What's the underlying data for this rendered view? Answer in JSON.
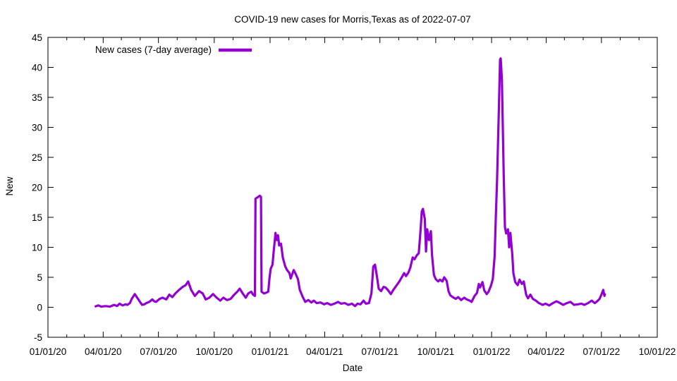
{
  "chart_data": {
    "type": "line",
    "title": "COVID-19 new cases for Morris,Texas as of 2022-07-07",
    "xlabel": "Date",
    "ylabel": "New",
    "grid": false,
    "background_color": "#ffffff",
    "axis_color": "#000000",
    "legend": {
      "position": "top-left-inside",
      "sample": "line-right-of-label"
    },
    "x_axis": {
      "start_date": "2020-01-01",
      "end_date": "2022-10-01",
      "tick_labels": [
        "01/01/20",
        "04/01/20",
        "07/01/20",
        "10/01/20",
        "01/01/21",
        "04/01/21",
        "07/01/21",
        "10/01/21",
        "01/01/22",
        "04/01/22",
        "07/01/22",
        "10/01/22"
      ],
      "major_tick_every_months": 3,
      "minor_tick_every_months": 1
    },
    "y_axis": {
      "min": -5,
      "max": 45,
      "tick_step": 5,
      "tick_labels": [
        "-5",
        "0",
        "5",
        "10",
        "15",
        "20",
        "25",
        "30",
        "35",
        "40",
        "45"
      ]
    },
    "series": [
      {
        "name": "New cases (7-day average)",
        "color": "#9400d3",
        "points": [
          [
            "2020-03-18",
            0.1
          ],
          [
            "2020-03-24",
            0.3
          ],
          [
            "2020-03-29",
            0.1
          ],
          [
            "2020-04-05",
            0.2
          ],
          [
            "2020-04-12",
            0.1
          ],
          [
            "2020-04-19",
            0.4
          ],
          [
            "2020-04-24",
            0.2
          ],
          [
            "2020-04-28",
            0.6
          ],
          [
            "2020-05-03",
            0.3
          ],
          [
            "2020-05-08",
            0.5
          ],
          [
            "2020-05-11",
            0.4
          ],
          [
            "2020-05-15",
            0.7
          ],
          [
            "2020-05-18",
            1.4
          ],
          [
            "2020-05-23",
            2.2
          ],
          [
            "2020-05-29",
            1.3
          ],
          [
            "2020-06-04",
            0.4
          ],
          [
            "2020-06-08",
            0.5
          ],
          [
            "2020-06-11",
            0.7
          ],
          [
            "2020-06-16",
            0.9
          ],
          [
            "2020-06-21",
            1.3
          ],
          [
            "2020-06-24",
            1.0
          ],
          [
            "2020-06-27",
            0.9
          ],
          [
            "2020-07-03",
            1.4
          ],
          [
            "2020-07-08",
            1.6
          ],
          [
            "2020-07-14",
            1.3
          ],
          [
            "2020-07-19",
            2.1
          ],
          [
            "2020-07-24",
            1.7
          ],
          [
            "2020-07-29",
            2.3
          ],
          [
            "2020-08-04",
            2.9
          ],
          [
            "2020-08-10",
            3.4
          ],
          [
            "2020-08-15",
            3.7
          ],
          [
            "2020-08-19",
            4.3
          ],
          [
            "2020-08-24",
            2.9
          ],
          [
            "2020-08-30",
            1.9
          ],
          [
            "2020-09-06",
            2.7
          ],
          [
            "2020-09-12",
            2.3
          ],
          [
            "2020-09-17",
            1.3
          ],
          [
            "2020-09-23",
            1.6
          ],
          [
            "2020-09-29",
            2.2
          ],
          [
            "2020-10-05",
            1.6
          ],
          [
            "2020-10-11",
            1.1
          ],
          [
            "2020-10-16",
            1.6
          ],
          [
            "2020-10-22",
            1.2
          ],
          [
            "2020-10-28",
            1.4
          ],
          [
            "2020-11-03",
            2.1
          ],
          [
            "2020-11-08",
            2.6
          ],
          [
            "2020-11-12",
            3.1
          ],
          [
            "2020-11-17",
            2.3
          ],
          [
            "2020-11-22",
            1.6
          ],
          [
            "2020-11-26",
            2.3
          ],
          [
            "2020-12-01",
            2.6
          ],
          [
            "2020-12-04",
            2.1
          ],
          [
            "2020-12-07",
            1.9
          ],
          [
            "2020-12-08",
            18.1
          ],
          [
            "2020-12-11",
            18.3
          ],
          [
            "2020-12-15",
            18.6
          ],
          [
            "2020-12-17",
            18.4
          ],
          [
            "2020-12-18",
            2.6
          ],
          [
            "2020-12-22",
            2.3
          ],
          [
            "2020-12-25",
            2.4
          ],
          [
            "2020-12-29",
            2.6
          ],
          [
            "2020-12-31",
            4.8
          ],
          [
            "2021-01-02",
            6.4
          ],
          [
            "2021-01-05",
            7.1
          ],
          [
            "2021-01-07",
            9.3
          ],
          [
            "2021-01-10",
            12.4
          ],
          [
            "2021-01-12",
            11.2
          ],
          [
            "2021-01-14",
            12.0
          ],
          [
            "2021-01-16",
            10.3
          ],
          [
            "2021-01-19",
            10.6
          ],
          [
            "2021-01-22",
            8.3
          ],
          [
            "2021-01-26",
            6.8
          ],
          [
            "2021-01-29",
            6.2
          ],
          [
            "2021-02-02",
            5.7
          ],
          [
            "2021-02-04",
            4.8
          ],
          [
            "2021-02-09",
            6.2
          ],
          [
            "2021-02-12",
            5.6
          ],
          [
            "2021-02-16",
            4.7
          ],
          [
            "2021-02-19",
            2.9
          ],
          [
            "2021-02-24",
            1.7
          ],
          [
            "2021-02-28",
            0.9
          ],
          [
            "2021-03-05",
            1.2
          ],
          [
            "2021-03-10",
            0.8
          ],
          [
            "2021-03-14",
            1.1
          ],
          [
            "2021-03-19",
            0.7
          ],
          [
            "2021-03-25",
            0.8
          ],
          [
            "2021-03-31",
            0.5
          ],
          [
            "2021-04-05",
            0.7
          ],
          [
            "2021-04-11",
            0.4
          ],
          [
            "2021-04-17",
            0.6
          ],
          [
            "2021-04-23",
            0.9
          ],
          [
            "2021-04-28",
            0.6
          ],
          [
            "2021-05-04",
            0.7
          ],
          [
            "2021-05-10",
            0.4
          ],
          [
            "2021-05-16",
            0.6
          ],
          [
            "2021-05-21",
            0.2
          ],
          [
            "2021-05-25",
            0.6
          ],
          [
            "2021-05-30",
            0.5
          ],
          [
            "2021-06-04",
            1.1
          ],
          [
            "2021-06-08",
            0.6
          ],
          [
            "2021-06-13",
            0.7
          ],
          [
            "2021-06-17",
            2.3
          ],
          [
            "2021-06-20",
            6.8
          ],
          [
            "2021-06-23",
            7.1
          ],
          [
            "2021-06-26",
            5.2
          ],
          [
            "2021-06-29",
            3.1
          ],
          [
            "2021-07-03",
            2.7
          ],
          [
            "2021-07-07",
            3.4
          ],
          [
            "2021-07-10",
            3.3
          ],
          [
            "2021-07-14",
            2.9
          ],
          [
            "2021-07-19",
            2.2
          ],
          [
            "2021-07-23",
            2.9
          ],
          [
            "2021-07-28",
            3.6
          ],
          [
            "2021-08-02",
            4.3
          ],
          [
            "2021-08-06",
            5.0
          ],
          [
            "2021-08-10",
            5.7
          ],
          [
            "2021-08-13",
            5.2
          ],
          [
            "2021-08-17",
            5.8
          ],
          [
            "2021-08-20",
            6.6
          ],
          [
            "2021-08-24",
            8.3
          ],
          [
            "2021-08-27",
            8.0
          ],
          [
            "2021-08-31",
            8.7
          ],
          [
            "2021-09-03",
            9.0
          ],
          [
            "2021-09-06",
            12.9
          ],
          [
            "2021-09-08",
            16.0
          ],
          [
            "2021-09-10",
            16.4
          ],
          [
            "2021-09-13",
            14.7
          ],
          [
            "2021-09-15",
            9.3
          ],
          [
            "2021-09-17",
            13.0
          ],
          [
            "2021-09-20",
            11.2
          ],
          [
            "2021-09-23",
            12.7
          ],
          [
            "2021-09-25",
            8.6
          ],
          [
            "2021-09-28",
            5.4
          ],
          [
            "2021-10-01",
            4.7
          ],
          [
            "2021-10-05",
            4.3
          ],
          [
            "2021-10-08",
            4.6
          ],
          [
            "2021-10-12",
            4.3
          ],
          [
            "2021-10-15",
            5.0
          ],
          [
            "2021-10-19",
            4.4
          ],
          [
            "2021-10-22",
            2.7
          ],
          [
            "2021-10-25",
            2.0
          ],
          [
            "2021-10-29",
            1.7
          ],
          [
            "2021-11-03",
            1.4
          ],
          [
            "2021-11-07",
            1.7
          ],
          [
            "2021-11-12",
            1.2
          ],
          [
            "2021-11-17",
            1.6
          ],
          [
            "2021-11-21",
            1.3
          ],
          [
            "2021-11-26",
            1.1
          ],
          [
            "2021-11-29",
            0.9
          ],
          [
            "2021-12-04",
            1.9
          ],
          [
            "2021-12-08",
            2.4
          ],
          [
            "2021-12-11",
            3.9
          ],
          [
            "2021-12-13",
            3.3
          ],
          [
            "2021-12-17",
            4.2
          ],
          [
            "2021-12-20",
            2.8
          ],
          [
            "2021-12-24",
            2.2
          ],
          [
            "2021-12-27",
            2.6
          ],
          [
            "2021-12-31",
            3.6
          ],
          [
            "2022-01-03",
            4.7
          ],
          [
            "2022-01-06",
            8.5
          ],
          [
            "2022-01-08",
            15.1
          ],
          [
            "2022-01-10",
            21.0
          ],
          [
            "2022-01-13",
            33.0
          ],
          [
            "2022-01-15",
            41.3
          ],
          [
            "2022-01-16",
            41.5
          ],
          [
            "2022-01-18",
            38.0
          ],
          [
            "2022-01-21",
            22.0
          ],
          [
            "2022-01-23",
            13.4
          ],
          [
            "2022-01-25",
            12.3
          ],
          [
            "2022-01-28",
            13.0
          ],
          [
            "2022-01-30",
            10.0
          ],
          [
            "2022-02-01",
            12.4
          ],
          [
            "2022-02-04",
            9.0
          ],
          [
            "2022-02-06",
            5.7
          ],
          [
            "2022-02-09",
            4.2
          ],
          [
            "2022-02-13",
            3.7
          ],
          [
            "2022-02-16",
            4.6
          ],
          [
            "2022-02-20",
            3.9
          ],
          [
            "2022-02-23",
            4.3
          ],
          [
            "2022-02-27",
            2.1
          ],
          [
            "2022-03-02",
            1.5
          ],
          [
            "2022-03-06",
            2.1
          ],
          [
            "2022-03-10",
            1.4
          ],
          [
            "2022-03-15",
            1.1
          ],
          [
            "2022-03-20",
            0.7
          ],
          [
            "2022-03-26",
            0.4
          ],
          [
            "2022-03-31",
            0.6
          ],
          [
            "2022-04-06",
            0.3
          ],
          [
            "2022-04-12",
            0.7
          ],
          [
            "2022-04-18",
            1.0
          ],
          [
            "2022-04-24",
            0.7
          ],
          [
            "2022-04-29",
            0.4
          ],
          [
            "2022-05-05",
            0.7
          ],
          [
            "2022-05-11",
            0.9
          ],
          [
            "2022-05-17",
            0.4
          ],
          [
            "2022-05-23",
            0.5
          ],
          [
            "2022-05-29",
            0.6
          ],
          [
            "2022-06-03",
            0.4
          ],
          [
            "2022-06-09",
            0.7
          ],
          [
            "2022-06-15",
            1.1
          ],
          [
            "2022-06-20",
            0.7
          ],
          [
            "2022-06-24",
            1.0
          ],
          [
            "2022-06-28",
            1.4
          ],
          [
            "2022-07-01",
            2.1
          ],
          [
            "2022-07-04",
            2.9
          ],
          [
            "2022-07-06",
            1.9
          ],
          [
            "2022-07-07",
            2.3
          ]
        ]
      }
    ]
  }
}
